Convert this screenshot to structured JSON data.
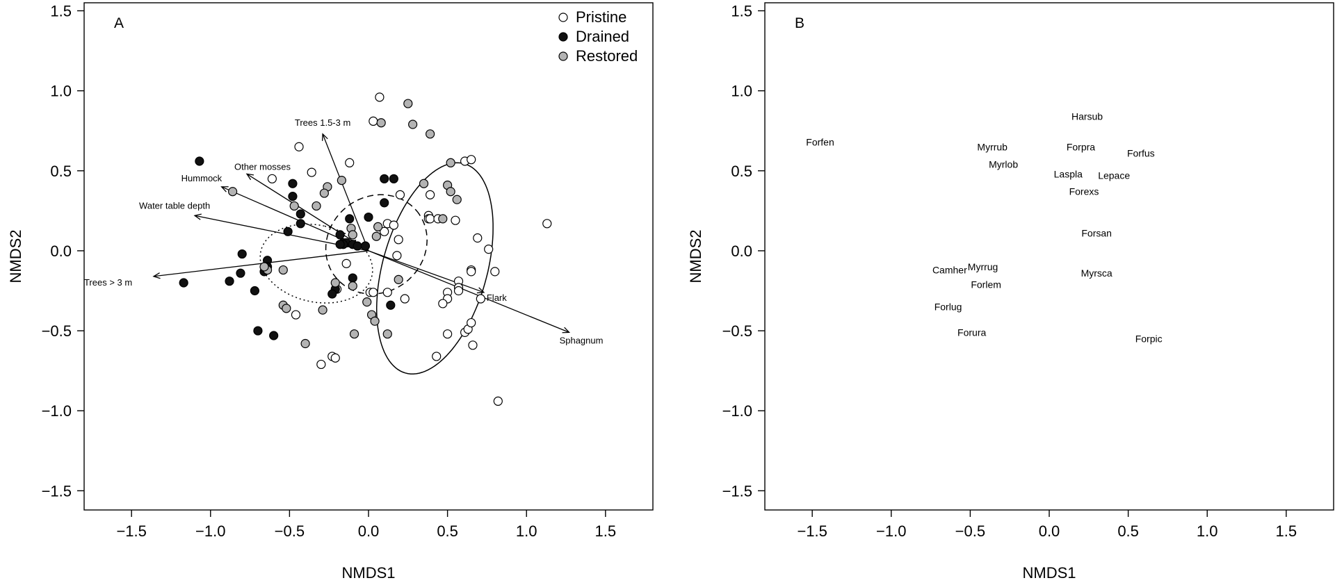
{
  "colors": {
    "pristine": "#ffffff",
    "drained": "#111111",
    "restored": "#b3b3b3",
    "stroke": "#000000"
  },
  "chart_data": [
    {
      "type": "scatter",
      "panel_label": "A",
      "xlabel": "NMDS1",
      "ylabel": "NMDS2",
      "xlim": [
        -1.8,
        1.8
      ],
      "ylim": [
        -1.62,
        1.55
      ],
      "xticks": [
        -1.5,
        -1.0,
        -0.5,
        0.0,
        0.5,
        1.0,
        1.5
      ],
      "yticks": [
        -1.5,
        -1.0,
        -0.5,
        0.0,
        0.5,
        1.0,
        1.5
      ],
      "tick_labels": [
        "−1.5",
        "−1.0",
        "−0.5",
        "0.0",
        "0.5",
        "1.0",
        "1.5"
      ],
      "legend": {
        "position": "top-right",
        "entries": [
          "Pristine",
          "Drained",
          "Restored"
        ]
      },
      "series": [
        {
          "name": "Pristine",
          "marker": "open-circle",
          "points": [
            [
              0.07,
              0.96
            ],
            [
              0.03,
              0.81
            ],
            [
              -0.44,
              0.65
            ],
            [
              -0.36,
              0.49
            ],
            [
              -0.61,
              0.45
            ],
            [
              -0.12,
              0.55
            ],
            [
              0.39,
              0.35
            ],
            [
              0.2,
              0.35
            ],
            [
              0.61,
              0.56
            ],
            [
              0.65,
              0.57
            ],
            [
              0.38,
              0.22
            ],
            [
              0.38,
              0.2
            ],
            [
              0.39,
              0.2
            ],
            [
              0.44,
              0.2
            ],
            [
              0.55,
              0.19
            ],
            [
              0.12,
              0.17
            ],
            [
              0.16,
              0.16
            ],
            [
              0.1,
              0.12
            ],
            [
              0.69,
              0.08
            ],
            [
              0.76,
              0.01
            ],
            [
              0.19,
              0.07
            ],
            [
              0.18,
              -0.03
            ],
            [
              0.8,
              -0.13
            ],
            [
              0.65,
              -0.12
            ],
            [
              0.65,
              -0.13
            ],
            [
              0.57,
              -0.19
            ],
            [
              0.57,
              -0.23
            ],
            [
              0.57,
              -0.25
            ],
            [
              0.5,
              -0.26
            ],
            [
              0.5,
              -0.3
            ],
            [
              0.47,
              -0.33
            ],
            [
              0.71,
              -0.3
            ],
            [
              0.01,
              -0.26
            ],
            [
              0.03,
              -0.26
            ],
            [
              0.23,
              -0.3
            ],
            [
              0.12,
              -0.26
            ],
            [
              -0.14,
              -0.08
            ],
            [
              -0.46,
              -0.4
            ],
            [
              -0.2,
              -0.24
            ],
            [
              0.5,
              -0.52
            ],
            [
              0.61,
              -0.51
            ],
            [
              0.63,
              -0.49
            ],
            [
              0.65,
              -0.45
            ],
            [
              0.66,
              -0.59
            ],
            [
              -0.23,
              -0.66
            ],
            [
              -0.21,
              -0.67
            ],
            [
              -0.3,
              -0.71
            ],
            [
              0.43,
              -0.66
            ],
            [
              0.82,
              -0.94
            ],
            [
              1.13,
              0.17
            ]
          ]
        },
        {
          "name": "Drained",
          "marker": "filled-circle",
          "points": [
            [
              -1.07,
              0.56
            ],
            [
              -0.48,
              0.42
            ],
            [
              -0.48,
              0.34
            ],
            [
              0.1,
              0.45
            ],
            [
              0.16,
              0.45
            ],
            [
              0.1,
              0.3
            ],
            [
              -0.43,
              0.23
            ],
            [
              -0.43,
              0.17
            ],
            [
              -0.12,
              0.2
            ],
            [
              -0.18,
              0.1
            ],
            [
              0.0,
              0.21
            ],
            [
              -0.51,
              0.12
            ],
            [
              -0.16,
              0.05
            ],
            [
              -0.14,
              0.05
            ],
            [
              -0.1,
              0.04
            ],
            [
              -0.07,
              0.03
            ],
            [
              -0.16,
              0.04
            ],
            [
              -0.02,
              0.03
            ],
            [
              -0.18,
              0.04
            ],
            [
              -0.64,
              -0.06
            ],
            [
              -0.64,
              -0.1
            ],
            [
              -0.66,
              -0.13
            ],
            [
              -0.8,
              -0.02
            ],
            [
              -0.81,
              -0.14
            ],
            [
              -0.88,
              -0.19
            ],
            [
              -1.17,
              -0.2
            ],
            [
              -0.72,
              -0.25
            ],
            [
              -0.21,
              -0.24
            ],
            [
              -0.23,
              -0.27
            ],
            [
              -0.1,
              -0.17
            ],
            [
              0.14,
              -0.34
            ],
            [
              -0.7,
              -0.5
            ],
            [
              -0.6,
              -0.53
            ]
          ]
        },
        {
          "name": "Restored",
          "marker": "grey-circle",
          "points": [
            [
              0.25,
              0.92
            ],
            [
              0.28,
              0.79
            ],
            [
              0.08,
              0.8
            ],
            [
              0.39,
              0.73
            ],
            [
              0.52,
              0.55
            ],
            [
              -0.17,
              0.44
            ],
            [
              -0.26,
              0.4
            ],
            [
              -0.28,
              0.36
            ],
            [
              0.35,
              0.42
            ],
            [
              0.5,
              0.41
            ],
            [
              0.52,
              0.37
            ],
            [
              0.56,
              0.32
            ],
            [
              -0.86,
              0.37
            ],
            [
              -0.47,
              0.28
            ],
            [
              -0.33,
              0.28
            ],
            [
              0.47,
              0.2
            ],
            [
              0.06,
              0.15
            ],
            [
              -0.11,
              0.14
            ],
            [
              0.05,
              0.09
            ],
            [
              -0.1,
              0.1
            ],
            [
              -0.54,
              -0.12
            ],
            [
              -0.64,
              -0.12
            ],
            [
              -0.66,
              -0.1
            ],
            [
              0.19,
              -0.18
            ],
            [
              -0.1,
              -0.22
            ],
            [
              -0.21,
              -0.2
            ],
            [
              -0.54,
              -0.34
            ],
            [
              -0.52,
              -0.36
            ],
            [
              -0.29,
              -0.37
            ],
            [
              -0.01,
              -0.32
            ],
            [
              0.02,
              -0.4
            ],
            [
              0.04,
              -0.44
            ],
            [
              0.12,
              -0.52
            ],
            [
              -0.09,
              -0.52
            ],
            [
              -0.4,
              -0.58
            ]
          ]
        }
      ],
      "vectors": [
        {
          "label": "Trees 1.5-3 m",
          "x": -0.29,
          "y": 0.73
        },
        {
          "label": "Other mosses",
          "x": -0.77,
          "y": 0.48
        },
        {
          "label": "Hummock",
          "x": -0.93,
          "y": 0.4
        },
        {
          "label": "Water table depth",
          "x": -1.1,
          "y": 0.22
        },
        {
          "label": "Trees > 3 m",
          "x": -1.36,
          "y": -0.16
        },
        {
          "label": "Flark",
          "x": 0.73,
          "y": -0.26
        },
        {
          "label": "Sphagnum",
          "x": 1.27,
          "y": -0.51
        }
      ],
      "ellipses": [
        {
          "group": "Pristine",
          "style": "solid",
          "cx": 0.42,
          "cy": -0.11,
          "rx": 0.68,
          "ry": 0.33,
          "angle_deg": 74
        },
        {
          "group": "Restored",
          "style": "dashed",
          "cx": 0.05,
          "cy": 0.04,
          "rx": 0.33,
          "ry": 0.3,
          "angle_deg": 35
        },
        {
          "group": "Drained",
          "style": "dotted",
          "cx": -0.33,
          "cy": -0.08,
          "rx": 0.24,
          "ry": 0.36,
          "angle_deg": 78
        }
      ]
    },
    {
      "type": "scatter",
      "panel_label": "B",
      "xlabel": "NMDS1",
      "ylabel": "NMDS2",
      "xlim": [
        -1.8,
        1.8
      ],
      "ylim": [
        -1.62,
        1.55
      ],
      "xticks": [
        -1.5,
        -1.0,
        -0.5,
        0.0,
        0.5,
        1.0,
        1.5
      ],
      "yticks": [
        -1.5,
        -1.0,
        -0.5,
        0.0,
        0.5,
        1.0,
        1.5
      ],
      "tick_labels": [
        "−1.5",
        "−1.0",
        "−0.5",
        "0.0",
        "0.5",
        "1.0",
        "1.5"
      ],
      "species": [
        {
          "label": "Forfen",
          "x": -1.45,
          "y": 0.68
        },
        {
          "label": "Harsub",
          "x": 0.24,
          "y": 0.84
        },
        {
          "label": "Myrrub",
          "x": -0.36,
          "y": 0.65
        },
        {
          "label": "Forpra",
          "x": 0.2,
          "y": 0.65
        },
        {
          "label": "Forfus",
          "x": 0.58,
          "y": 0.61
        },
        {
          "label": "Myrlob",
          "x": -0.29,
          "y": 0.54
        },
        {
          "label": "Laspla",
          "x": 0.12,
          "y": 0.48
        },
        {
          "label": "Lepace",
          "x": 0.41,
          "y": 0.47
        },
        {
          "label": "Forexs",
          "x": 0.22,
          "y": 0.37
        },
        {
          "label": "Forsan",
          "x": 0.3,
          "y": 0.11
        },
        {
          "label": "Camher",
          "x": -0.63,
          "y": -0.12
        },
        {
          "label": "Myrrug",
          "x": -0.42,
          "y": -0.1
        },
        {
          "label": "Myrsca",
          "x": 0.3,
          "y": -0.14
        },
        {
          "label": "Forlem",
          "x": -0.4,
          "y": -0.21
        },
        {
          "label": "Forlug",
          "x": -0.64,
          "y": -0.35
        },
        {
          "label": "Forura",
          "x": -0.49,
          "y": -0.51
        },
        {
          "label": "Forpic",
          "x": 0.63,
          "y": -0.55
        }
      ]
    }
  ]
}
